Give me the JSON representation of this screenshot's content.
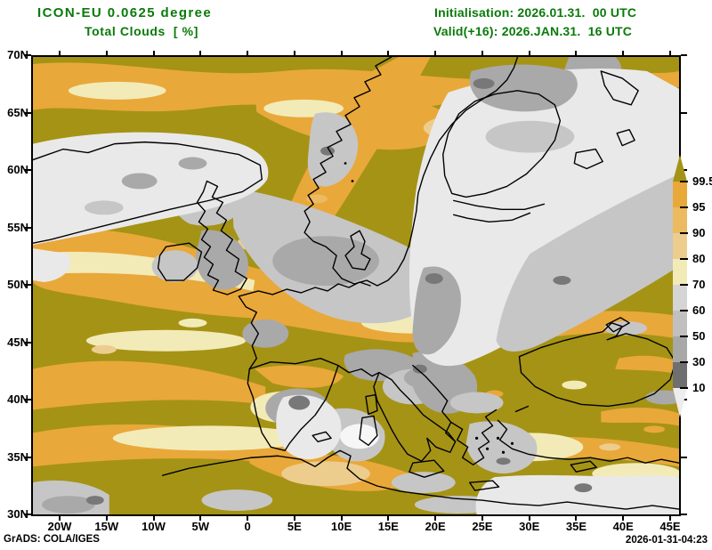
{
  "header": {
    "model": "ICON-EU 0.0625 degree",
    "variable": "Total Clouds  [ %]",
    "init_line": "Initialisation: 2026.01.31.  00 UTC",
    "valid_line": "Valid(+16): 2026.JAN.31.  16 UTC"
  },
  "map": {
    "lat_labels": [
      "70N",
      "65N",
      "60N",
      "55N",
      "50N",
      "45N",
      "40N",
      "35N",
      "30N"
    ],
    "lon_labels": [
      "20W",
      "15W",
      "10W",
      "5W",
      "0",
      "5E",
      "10E",
      "15E",
      "20E",
      "25E",
      "30E",
      "35E",
      "40E",
      "45E"
    ]
  },
  "colorbar": {
    "tick_labels": [
      "99.5",
      "95",
      "90",
      "80",
      "70",
      "60",
      "50",
      "30",
      "10"
    ],
    "top_triangle_color": "#a59315",
    "segment_colors": [
      "#e9a83a",
      "#ecba60",
      "#edcd8e",
      "#f2ebb8",
      "#d5d5d5",
      "#c0c0c0",
      "#a8a8a8",
      "#6f6f6f"
    ],
    "bottom_triangle_color": "#ededed"
  },
  "footer": {
    "left": "GrADS: COLA/IGES",
    "right": "2026-01-31-04:23"
  },
  "palette": {
    "header_text": "#0a7a0a",
    "axis_text": "#000000",
    "olive": "#a59315",
    "orange": "#e9a83a",
    "lorange": "#ecba60",
    "tan": "#edcd8e",
    "cream": "#f2ebb8",
    "paleg": "#e9e9e9",
    "midg": "#c6c6c6",
    "gray": "#a9a9a9",
    "darkg": "#787878",
    "white": "#f6f6f6"
  }
}
